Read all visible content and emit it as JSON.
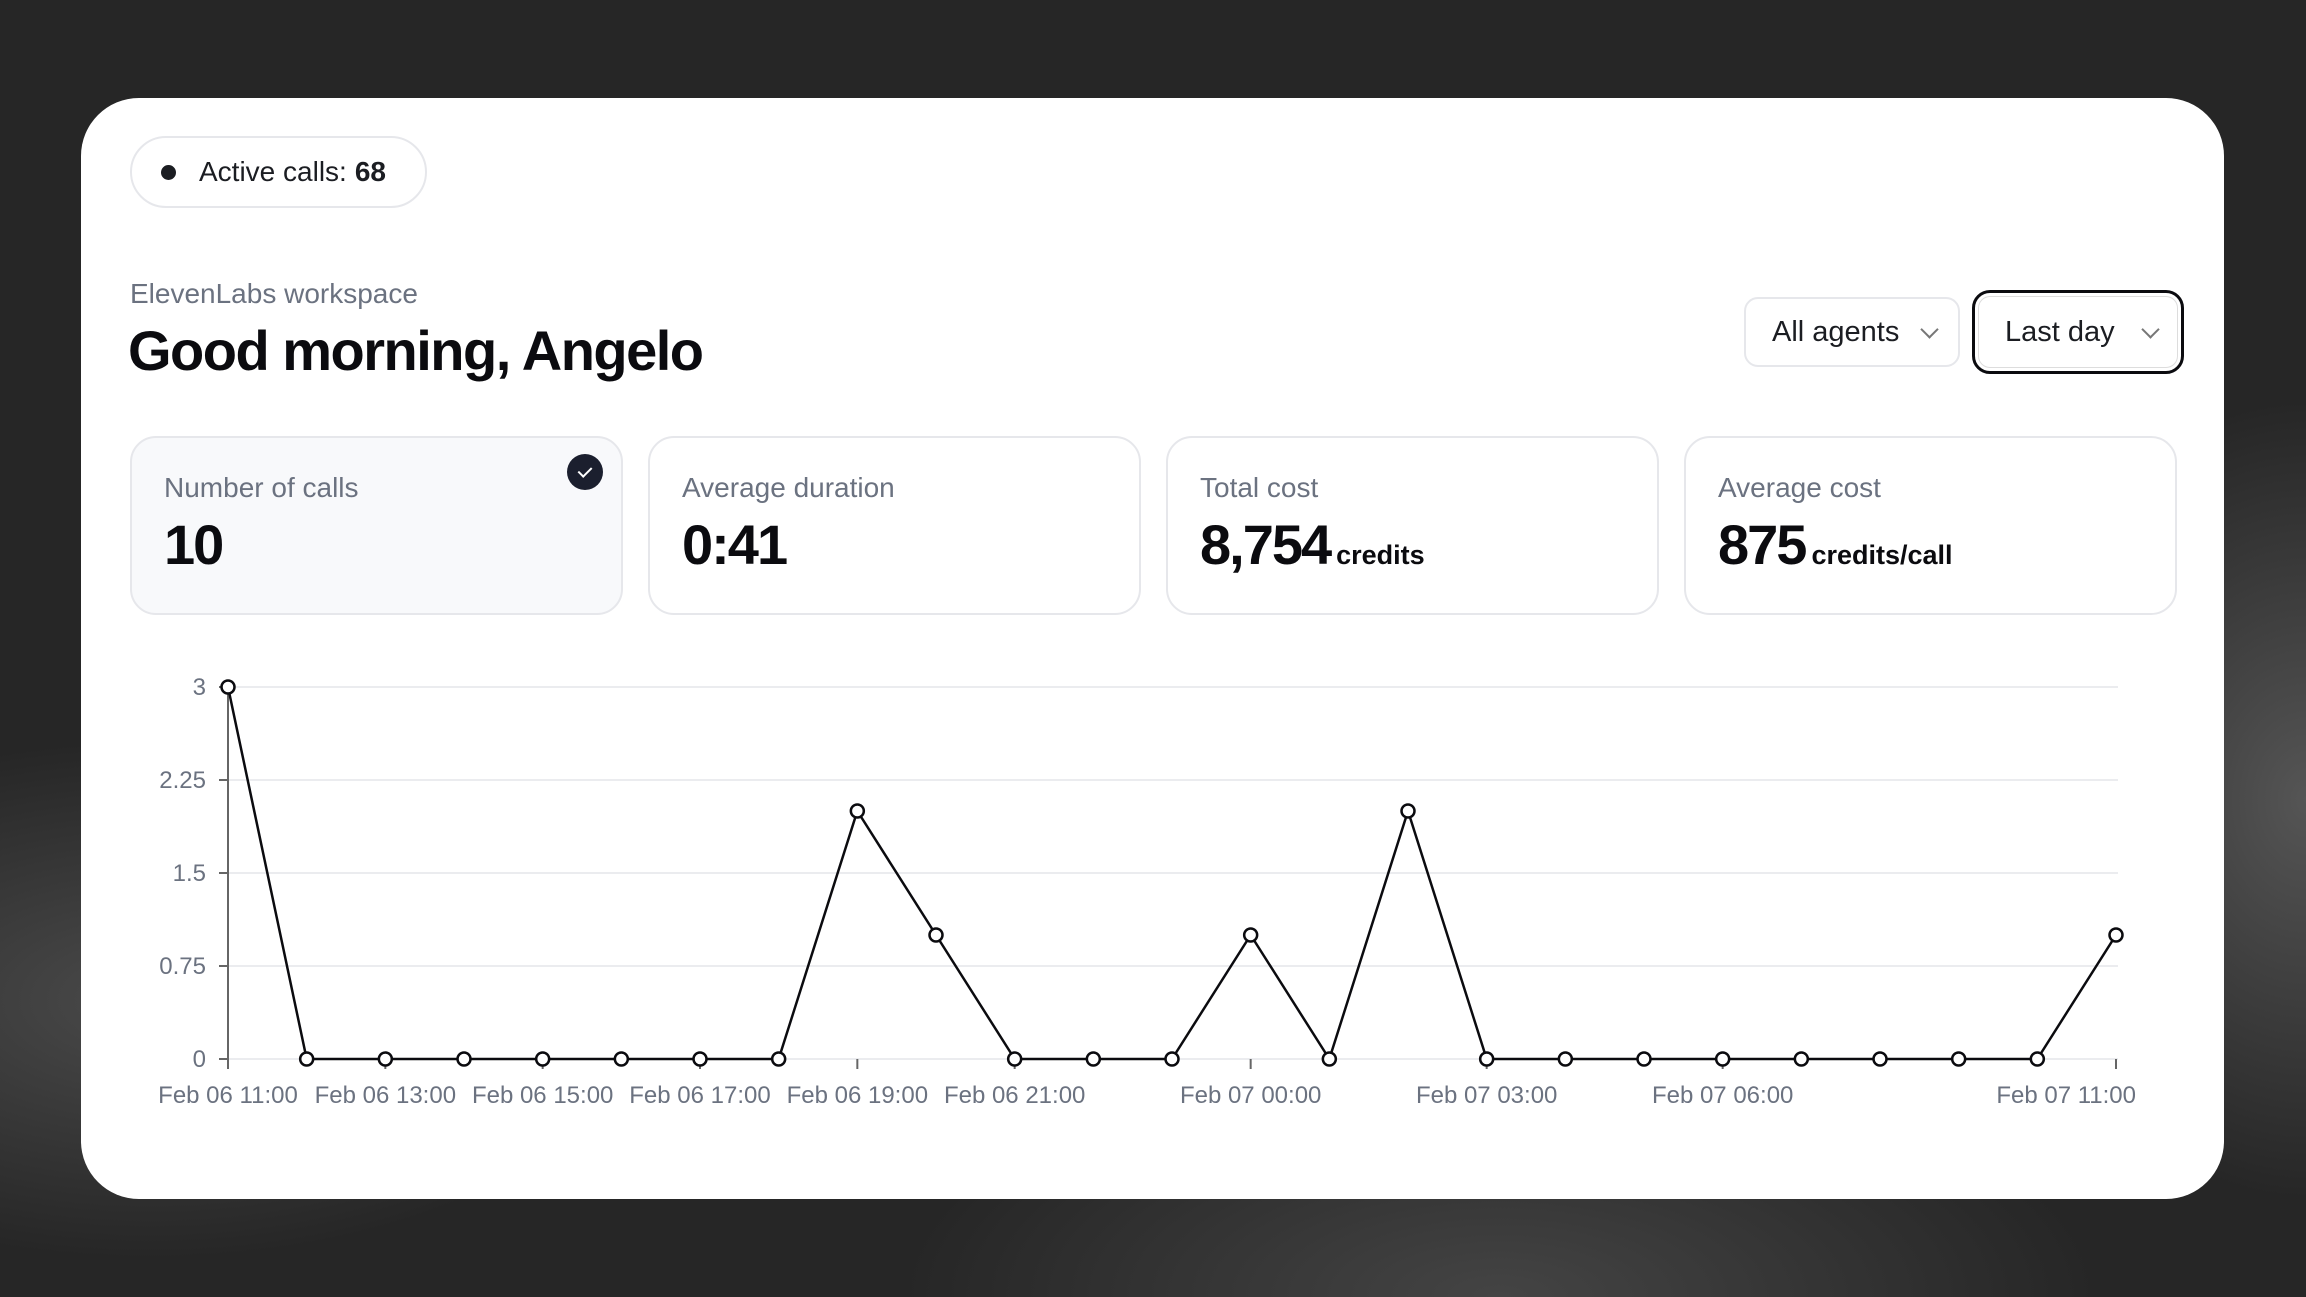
{
  "active_calls": {
    "label": "Active calls:",
    "count": "68"
  },
  "workspace": "ElevenLabs workspace",
  "greeting": "Good morning, Angelo",
  "filters": {
    "agents": "All agents",
    "range": "Last day"
  },
  "stats": [
    {
      "label": "Number of calls",
      "value": "10",
      "unit": "",
      "selected": true
    },
    {
      "label": "Average duration",
      "value": "0:41",
      "unit": ""
    },
    {
      "label": "Total cost",
      "value": "8,754",
      "unit": "credits"
    },
    {
      "label": "Average cost",
      "value": "875",
      "unit": "credits/call"
    }
  ],
  "chart_data": {
    "type": "line",
    "x": [
      "Feb 06 11:00",
      "Feb 06 12:00",
      "Feb 06 13:00",
      "Feb 06 14:00",
      "Feb 06 15:00",
      "Feb 06 16:00",
      "Feb 06 17:00",
      "Feb 06 18:00",
      "Feb 06 19:00",
      "Feb 06 20:00",
      "Feb 06 21:00",
      "Feb 06 22:00",
      "Feb 06 23:00",
      "Feb 07 00:00",
      "Feb 07 01:00",
      "Feb 07 02:00",
      "Feb 07 03:00",
      "Feb 07 04:00",
      "Feb 07 05:00",
      "Feb 07 06:00",
      "Feb 07 07:00",
      "Feb 07 08:00",
      "Feb 07 09:00",
      "Feb 07 10:00",
      "Feb 07 11:00"
    ],
    "values": [
      3,
      0,
      0,
      0,
      0,
      0,
      0,
      0,
      2,
      1,
      0,
      0,
      0,
      1,
      0,
      2,
      0,
      0,
      0,
      0,
      0,
      0,
      0,
      0,
      1
    ],
    "x_tick_labels": [
      "Feb 06 11:00",
      "Feb 06 13:00",
      "Feb 06 15:00",
      "Feb 06 17:00",
      "Feb 06 19:00",
      "Feb 06 21:00",
      "Feb 07 00:00",
      "Feb 07 03:00",
      "Feb 07 06:00",
      "Feb 07 11:00"
    ],
    "y_ticks": [
      "0",
      "0.75",
      "1.5",
      "2.25",
      "3"
    ],
    "ylim": [
      0,
      3
    ],
    "grid": true,
    "line_color": "#0b0b0f"
  }
}
